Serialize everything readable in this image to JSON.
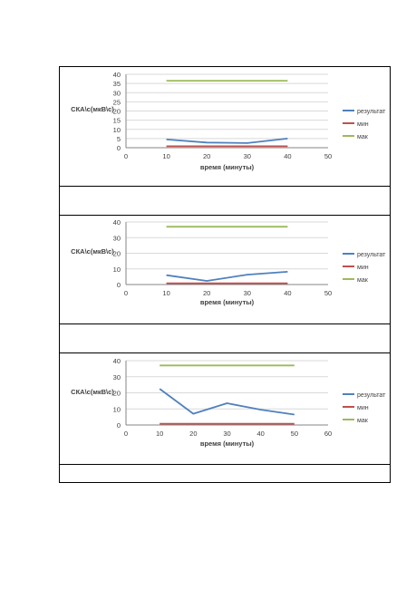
{
  "colors": {
    "series_result": "#4f81bd",
    "series_min": "#c0504d",
    "series_max": "#9bbb59",
    "grid": "#d9d9d9",
    "axis": "#868686"
  },
  "chart_data": [
    {
      "type": "line",
      "ylabel": "СКА\\с(мкВ\\с)",
      "xlabel": "время (минуты)",
      "xlim": [
        0,
        50
      ],
      "ylim": [
        0,
        40
      ],
      "xticks": [
        0,
        10,
        20,
        30,
        40,
        50
      ],
      "yticks": [
        0,
        5,
        10,
        15,
        20,
        25,
        30,
        35,
        40
      ],
      "grid": true,
      "legend_position": "right",
      "series": [
        {
          "name": "результат",
          "x": [
            10,
            20,
            30,
            40
          ],
          "values": [
            4.5,
            2.8,
            2.5,
            5.0
          ]
        },
        {
          "name": "мин",
          "x": [
            10,
            20,
            30,
            40
          ],
          "values": [
            0.8,
            0.8,
            0.8,
            0.8
          ]
        },
        {
          "name": "мак",
          "x": [
            10,
            20,
            30,
            40
          ],
          "values": [
            36.5,
            36.5,
            36.5,
            36.5
          ]
        }
      ]
    },
    {
      "type": "line",
      "ylabel": "СКА\\с(мкВ\\с)",
      "xlabel": "время (минуты)",
      "xlim": [
        0,
        50
      ],
      "ylim": [
        0,
        40
      ],
      "xticks": [
        0,
        10,
        20,
        30,
        40,
        50
      ],
      "yticks": [
        0,
        10,
        20,
        30,
        40
      ],
      "grid": true,
      "legend_position": "right",
      "series": [
        {
          "name": "результат",
          "x": [
            10,
            20,
            30,
            40
          ],
          "values": [
            6.0,
            2.3,
            6.3,
            8.2
          ]
        },
        {
          "name": "мин",
          "x": [
            10,
            20,
            30,
            40
          ],
          "values": [
            0.8,
            0.8,
            0.8,
            0.8
          ]
        },
        {
          "name": "мак",
          "x": [
            10,
            20,
            30,
            40
          ],
          "values": [
            37,
            37,
            37,
            37
          ]
        }
      ]
    },
    {
      "type": "line",
      "ylabel": "СКА\\с(мкВ\\с)",
      "xlabel": "время (минуты)",
      "xlim": [
        0,
        60
      ],
      "ylim": [
        0,
        40
      ],
      "xticks": [
        0,
        10,
        20,
        30,
        40,
        50,
        60
      ],
      "yticks": [
        0,
        10,
        20,
        30,
        40
      ],
      "grid": true,
      "legend_position": "right",
      "series": [
        {
          "name": "результат",
          "x": [
            10,
            20,
            30,
            40,
            50
          ],
          "values": [
            22.5,
            7.0,
            13.5,
            9.5,
            6.5
          ]
        },
        {
          "name": "мин",
          "x": [
            10,
            20,
            30,
            40,
            50
          ],
          "values": [
            0.8,
            0.8,
            0.8,
            0.8,
            0.8
          ]
        },
        {
          "name": "мак",
          "x": [
            10,
            20,
            30,
            40,
            50
          ],
          "values": [
            37,
            37,
            37,
            37,
            37
          ]
        }
      ]
    }
  ]
}
